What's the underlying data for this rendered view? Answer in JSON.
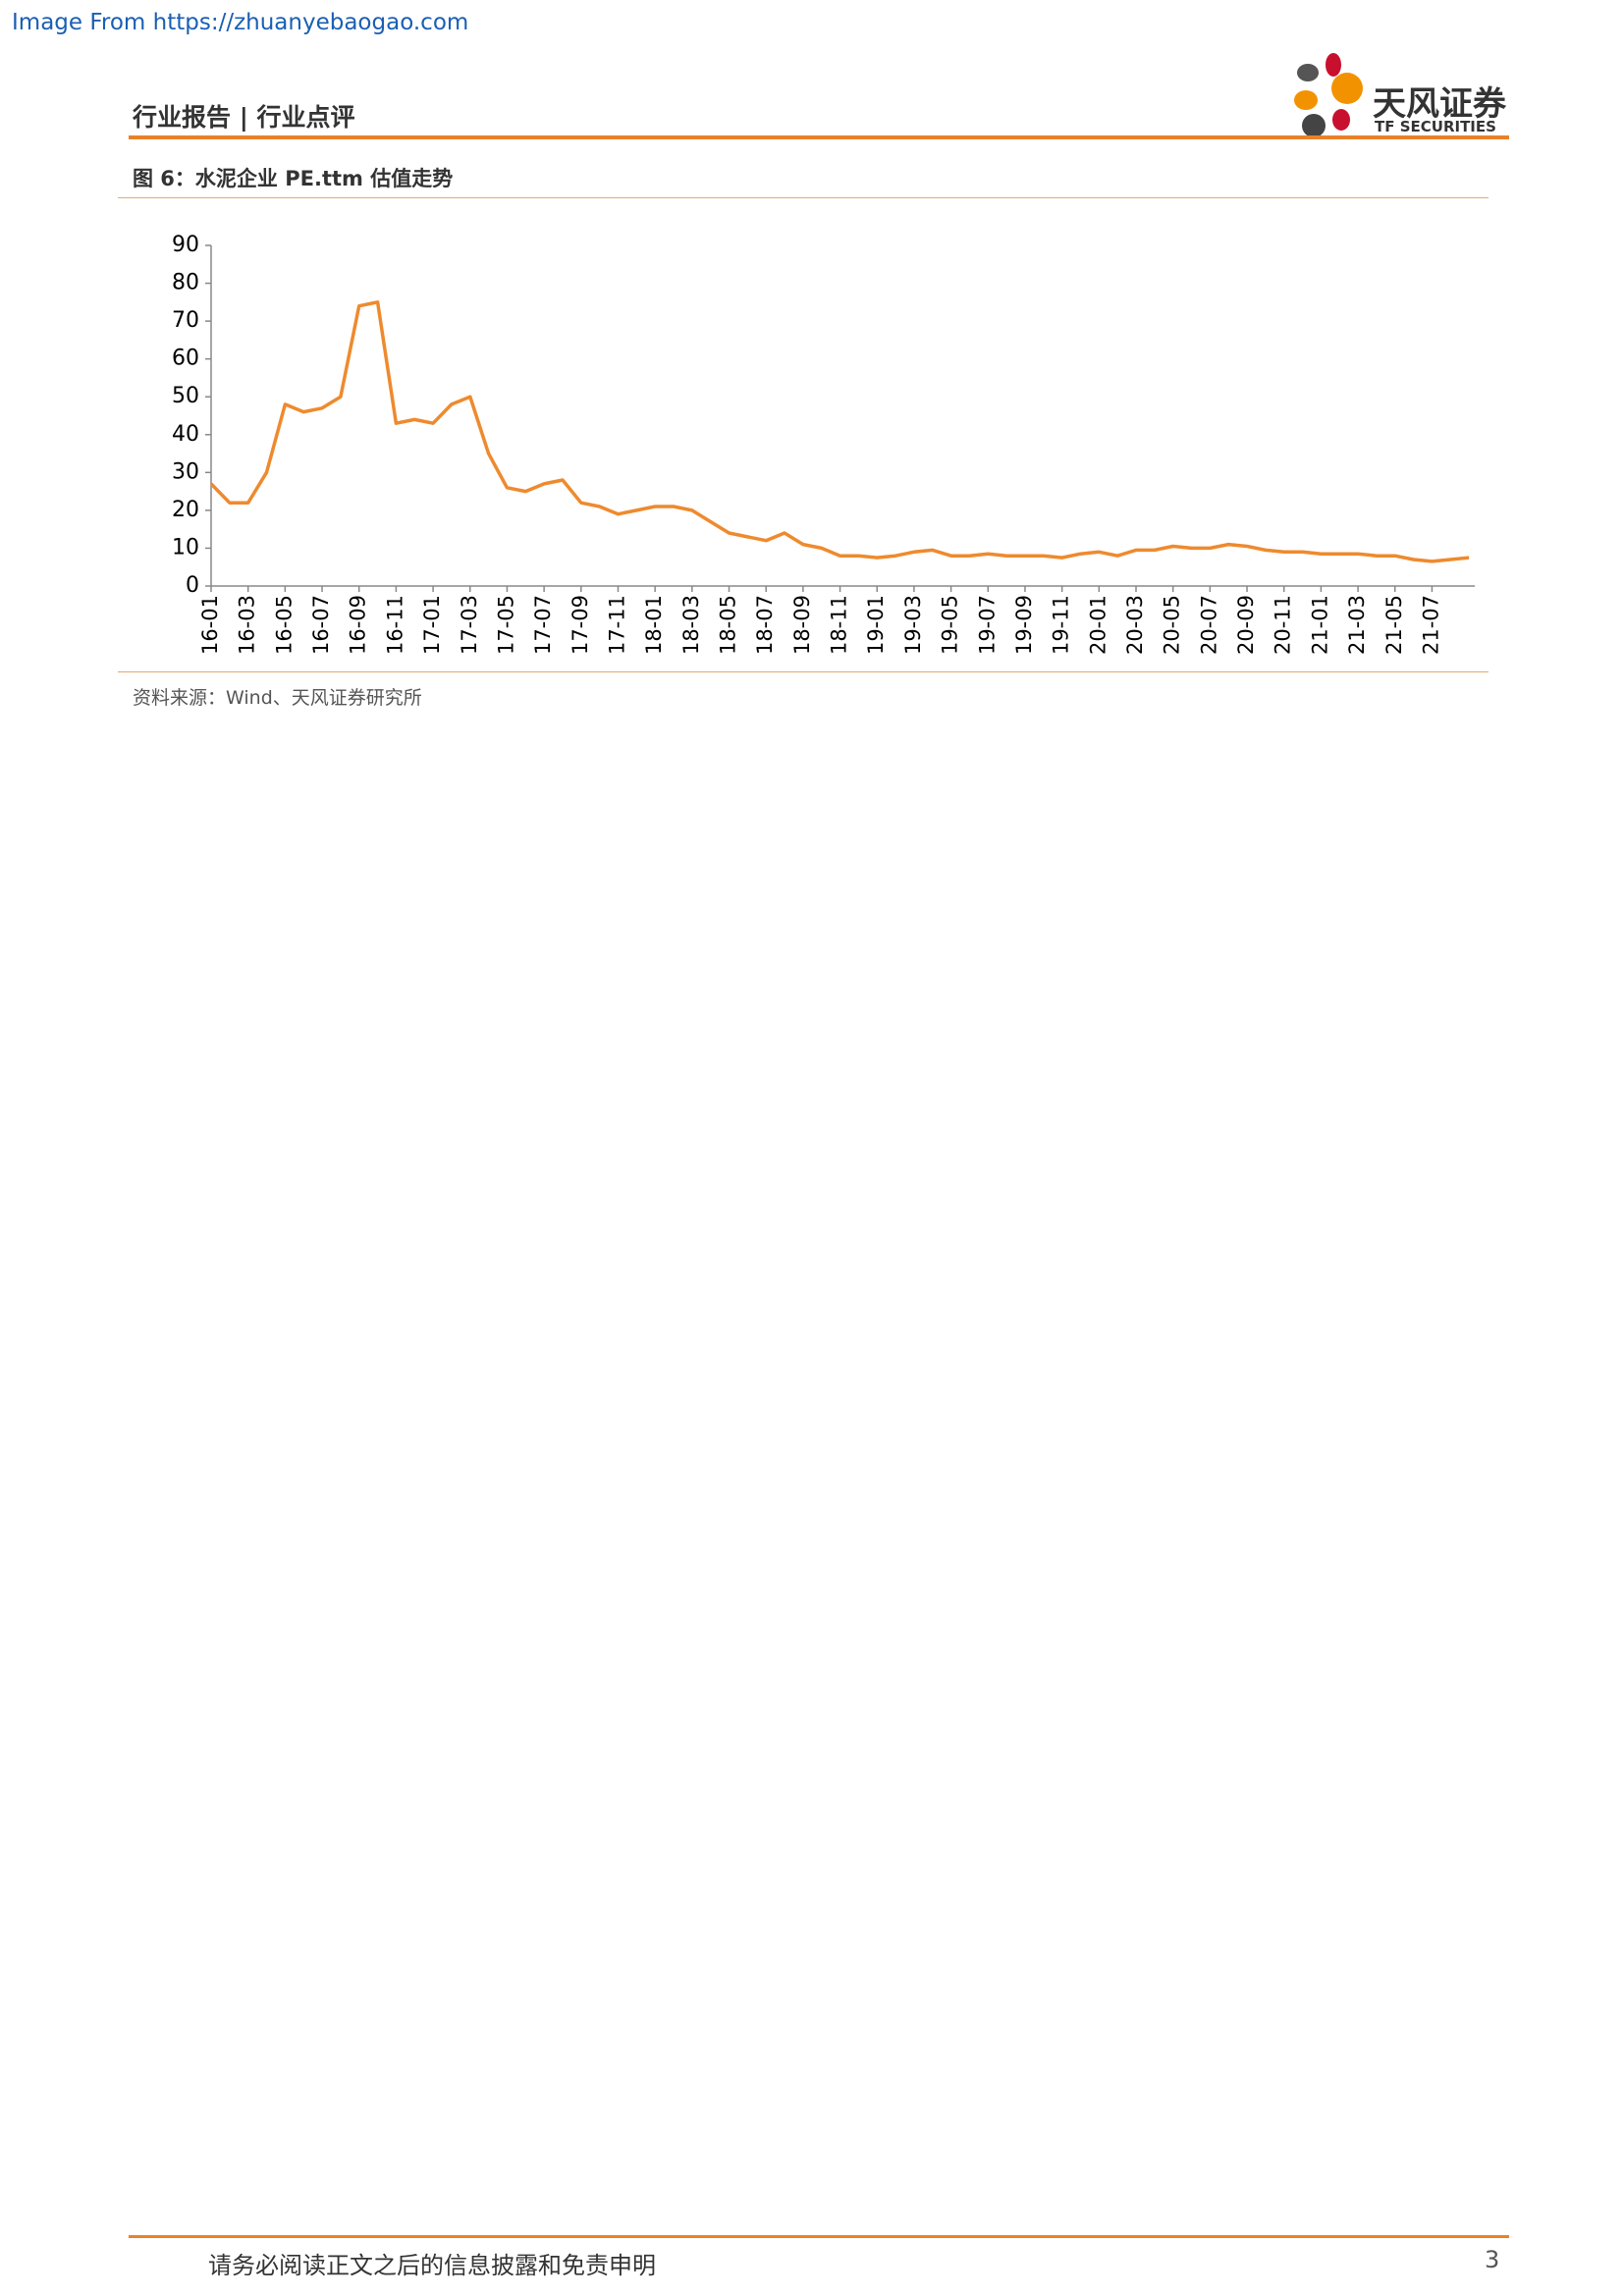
{
  "watermark": "Image From https://zhuanyebaogao.com",
  "header": {
    "title": "行业报告 | 行业点评",
    "logo_text": "天风证券",
    "logo_sub": "TF SECURITIES"
  },
  "figure": {
    "title": "图 6：水泥企业 PE.ttm 估值走势",
    "source": "资料来源：Wind、天风证券研究所"
  },
  "chart_data": {
    "type": "line",
    "color": "#ee8a2e",
    "categories": [
      "16-01",
      null,
      "16-03",
      null,
      "16-05",
      null,
      "16-07",
      null,
      "16-09",
      null,
      "16-11",
      null,
      "17-01",
      null,
      "17-03",
      null,
      "17-05",
      null,
      "17-07",
      null,
      "17-09",
      null,
      "17-11",
      null,
      "18-01",
      null,
      "18-03",
      null,
      "18-05",
      null,
      "18-07",
      null,
      "18-09",
      null,
      "18-11",
      null,
      "19-01",
      null,
      "19-03",
      null,
      "19-05",
      null,
      "19-07",
      null,
      "19-09",
      null,
      "19-11",
      null,
      "20-01",
      null,
      "20-03",
      null,
      "20-05",
      null,
      "20-07",
      null,
      "20-09",
      null,
      "20-11",
      null,
      "21-01",
      null,
      "21-03",
      null,
      "21-05",
      null,
      "21-07",
      null,
      null
    ],
    "values": [
      27,
      22,
      22,
      30,
      48,
      46,
      47,
      50,
      74,
      75,
      43,
      44,
      43,
      48,
      50,
      35,
      26,
      25,
      27,
      28,
      22,
      21,
      19,
      20,
      21,
      21,
      20,
      17,
      14,
      13,
      12,
      14,
      11,
      10,
      8,
      8,
      7.5,
      8,
      9,
      9.5,
      8,
      8,
      8.5,
      8,
      8,
      8,
      7.5,
      8.5,
      9,
      8,
      9.5,
      9.5,
      10.5,
      10,
      10,
      11,
      10.5,
      9.5,
      9,
      9,
      8.5,
      8.5,
      8.5,
      8,
      8,
      7,
      6.5,
      7,
      7.5
    ],
    "ylim": [
      0,
      90
    ],
    "yticks": [
      0,
      10,
      20,
      30,
      40,
      50,
      60,
      70,
      80,
      90
    ]
  },
  "footer": {
    "text": "请务必阅读正文之后的信息披露和免责申明",
    "page": "3"
  }
}
